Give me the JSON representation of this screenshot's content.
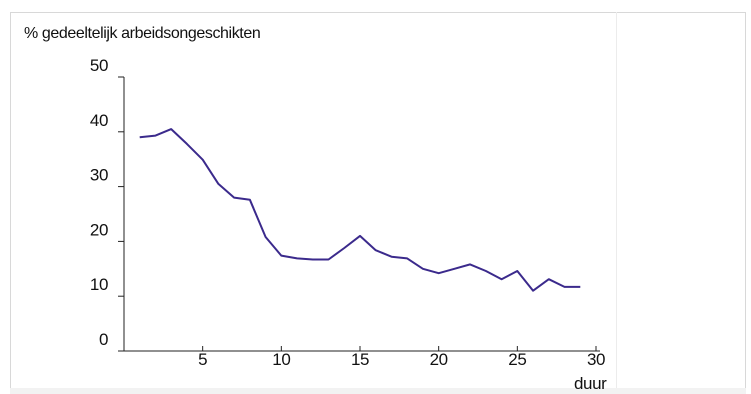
{
  "chart_data": {
    "type": "line",
    "title": "",
    "ylabel": "% gedeeltelijk arbeidsongeschikten",
    "xlabel": "duur",
    "xlim": [
      0,
      30
    ],
    "ylim": [
      0,
      50
    ],
    "xticks": [
      5,
      10,
      15,
      20,
      25,
      30
    ],
    "yticks": [
      0,
      10,
      20,
      30,
      40,
      50
    ],
    "grid": false,
    "line_color": "#3b2a8c",
    "series": [
      {
        "x": [
          1,
          2,
          3,
          4,
          5,
          6,
          7,
          8,
          9,
          10,
          11,
          12,
          13,
          14,
          15,
          16,
          17,
          18,
          19,
          20,
          21,
          22,
          23,
          24,
          25,
          26,
          27,
          28,
          29
        ],
        "y": [
          39.0,
          39.3,
          40.5,
          37.8,
          34.9,
          30.5,
          28.0,
          27.6,
          20.8,
          17.4,
          16.9,
          16.7,
          16.7,
          18.8,
          21.0,
          18.4,
          17.2,
          16.9,
          15.0,
          14.2,
          15.0,
          15.8,
          14.6,
          13.1,
          14.6,
          11.0,
          13.1,
          11.7,
          11.7
        ]
      }
    ]
  }
}
